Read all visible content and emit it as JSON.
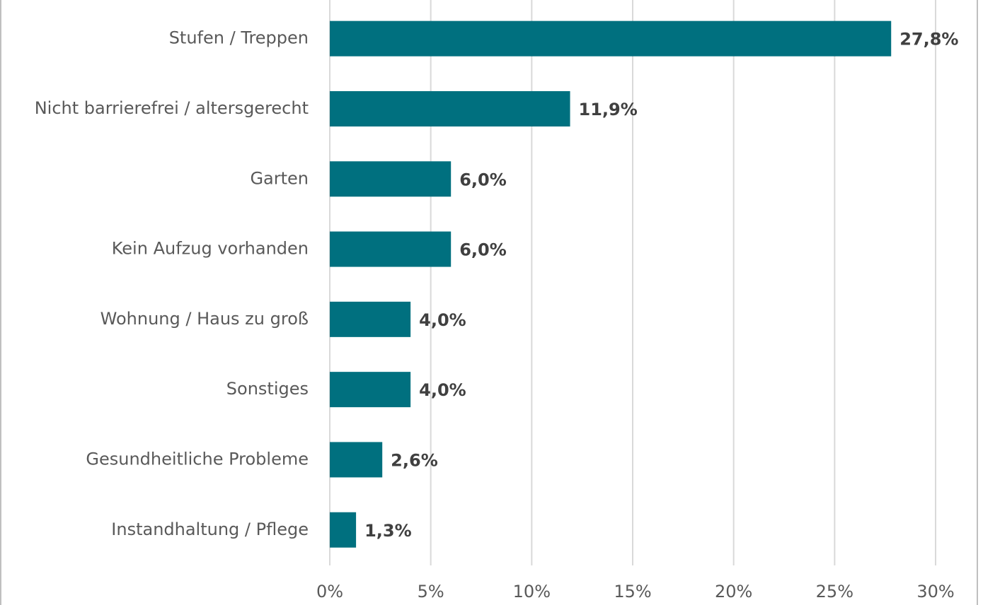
{
  "chart_data": {
    "type": "bar",
    "orientation": "horizontal",
    "categories": [
      "Stufen / Treppen",
      "Nicht barrierefrei / altersgerecht",
      "Garten",
      "Kein Aufzug vorhanden",
      "Wohnung / Haus zu groß",
      "Sonstiges",
      "Gesundheitliche Probleme",
      "Instandhaltung / Pflege"
    ],
    "values": [
      27.8,
      11.9,
      6.0,
      6.0,
      4.0,
      4.0,
      2.6,
      1.3
    ],
    "value_labels": [
      "27,8%",
      "11,9%",
      "6,0%",
      "6,0%",
      "4,0%",
      "4,0%",
      "2,6%",
      "1,3%"
    ],
    "color": "#00707f",
    "xlim": [
      0,
      30
    ],
    "xticks": [
      {
        "value": 0,
        "label": "0%"
      },
      {
        "value": 5,
        "label": "5%"
      },
      {
        "value": 10,
        "label": "10%"
      },
      {
        "value": 15,
        "label": "15%"
      },
      {
        "value": 20,
        "label": "20%"
      },
      {
        "value": 25,
        "label": "25%"
      },
      {
        "value": 30,
        "label": "30%"
      }
    ],
    "grid": true
  }
}
